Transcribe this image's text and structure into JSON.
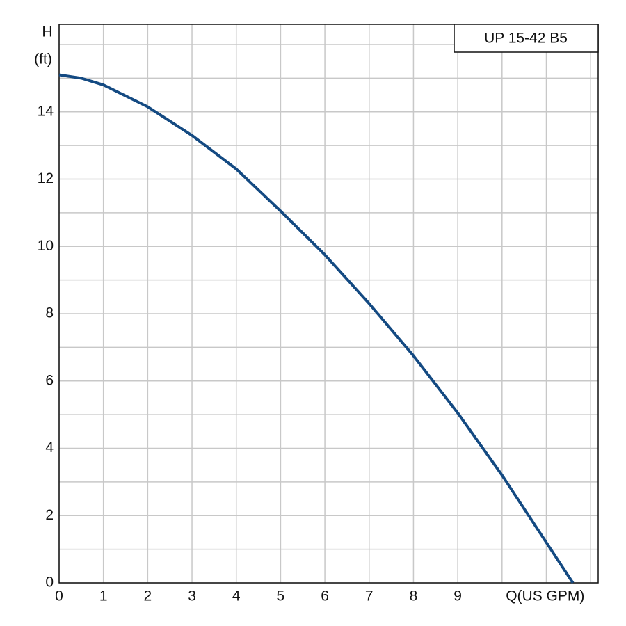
{
  "chart_data": {
    "type": "line",
    "title": "UP 15-42 B5",
    "x_label": "Q(US GPM)",
    "y_label": "H",
    "y_unit": "(ft)",
    "xlim": [
      0,
      12.17
    ],
    "ylim": [
      0,
      16.6
    ],
    "xticks": [
      0,
      1,
      2,
      3,
      4,
      5,
      6,
      7,
      8,
      9
    ],
    "xgrid_extra": [
      10,
      11,
      12
    ],
    "yticks": [
      0,
      2,
      4,
      6,
      8,
      10,
      12,
      14
    ],
    "ygrid_extra": [
      1,
      3,
      5,
      7,
      9,
      11,
      13,
      15,
      16
    ],
    "grid": true,
    "x": [
      0,
      0.5,
      1,
      2,
      3,
      4,
      5,
      6,
      7,
      8,
      9,
      10,
      11,
      11.6
    ],
    "series": [
      {
        "color": "#144a82",
        "values": [
          15.1,
          15.0,
          14.8,
          14.15,
          13.3,
          12.3,
          11.05,
          9.75,
          8.3,
          6.75,
          5.05,
          3.2,
          1.2,
          0
        ]
      }
    ]
  }
}
